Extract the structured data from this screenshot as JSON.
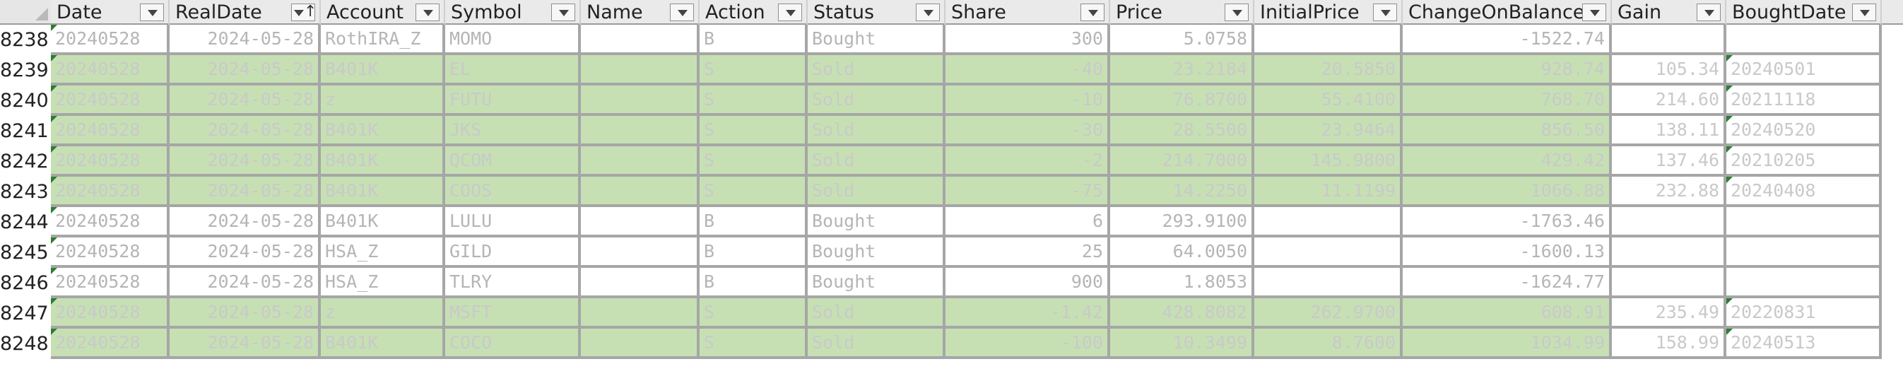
{
  "headers": [
    "Date",
    "RealDate",
    "Account",
    "Symbol",
    "Name",
    "Action",
    "Status",
    "Share",
    "Price",
    "InitialPrice",
    "ChangeOnBalance",
    "Gain",
    "BoughtDate"
  ],
  "sort_indicator": "↑",
  "rows": [
    {
      "num": "8238",
      "status_type": "bought",
      "cells": [
        "20240528",
        "2024-05-28",
        "RothIRA_Z",
        "MOMO",
        "",
        "B",
        "Bought",
        "300",
        "5.0758",
        "",
        "-1522.74",
        "",
        ""
      ]
    },
    {
      "num": "8239",
      "status_type": "sold",
      "cells": [
        "20240528",
        "2024-05-28",
        "B401K",
        "EL",
        "",
        "S",
        "Sold",
        "-40",
        "23.2184",
        "20.5850",
        "928.74",
        "105.34",
        "20240501"
      ]
    },
    {
      "num": "8240",
      "status_type": "sold",
      "cells": [
        "20240528",
        "2024-05-28",
        "z",
        "FUTU",
        "",
        "S",
        "Sold",
        "-10",
        "76.8700",
        "55.4100",
        "768.70",
        "214.60",
        "20211118"
      ]
    },
    {
      "num": "8241",
      "status_type": "sold",
      "cells": [
        "20240528",
        "2024-05-28",
        "B401K",
        "JKS",
        "",
        "S",
        "Sold",
        "-30",
        "28.5500",
        "23.9464",
        "856.50",
        "138.11",
        "20240520"
      ]
    },
    {
      "num": "8242",
      "status_type": "sold",
      "cells": [
        "20240528",
        "2024-05-28",
        "B401K",
        "QCOM",
        "",
        "S",
        "Sold",
        "-2",
        "214.7000",
        "145.9800",
        "429.42",
        "137.46",
        "20210205"
      ]
    },
    {
      "num": "8243",
      "status_type": "sold",
      "cells": [
        "20240528",
        "2024-05-28",
        "B401K",
        "COOS",
        "",
        "S",
        "Sold",
        "-75",
        "14.2250",
        "11.1199",
        "1066.88",
        "232.88",
        "20240408"
      ]
    },
    {
      "num": "8244",
      "status_type": "bought",
      "cells": [
        "20240528",
        "2024-05-28",
        "B401K",
        "LULU",
        "",
        "B",
        "Bought",
        "6",
        "293.9100",
        "",
        "-1763.46",
        "",
        ""
      ]
    },
    {
      "num": "8245",
      "status_type": "bought",
      "cells": [
        "20240528",
        "2024-05-28",
        "HSA_Z",
        "GILD",
        "",
        "B",
        "Bought",
        "25",
        "64.0050",
        "",
        "-1600.13",
        "",
        ""
      ]
    },
    {
      "num": "8246",
      "status_type": "bought",
      "cells": [
        "20240528",
        "2024-05-28",
        "HSA_Z",
        "TLRY",
        "",
        "B",
        "Bought",
        "900",
        "1.8053",
        "",
        "-1624.77",
        "",
        ""
      ]
    },
    {
      "num": "8247",
      "status_type": "sold",
      "cells": [
        "20240528",
        "2024-05-28",
        "z",
        "MSFT",
        "",
        "S",
        "Sold",
        "-1.42",
        "428.8082",
        "262.9700",
        "608.91",
        "235.49",
        "20220831"
      ]
    },
    {
      "num": "8248",
      "status_type": "sold",
      "cells": [
        "20240528",
        "2024-05-28",
        "B401K",
        "COCO",
        "",
        "S",
        "Sold",
        "-100",
        "10.3499",
        "8.7600",
        "1034.99",
        "158.99",
        "20240513"
      ]
    }
  ],
  "colors": {
    "sold_fill": "#c6e0b4",
    "grid": "#a6a6a6",
    "header_bg": "#eaeaea",
    "error_triangle": "#2e7d32"
  }
}
